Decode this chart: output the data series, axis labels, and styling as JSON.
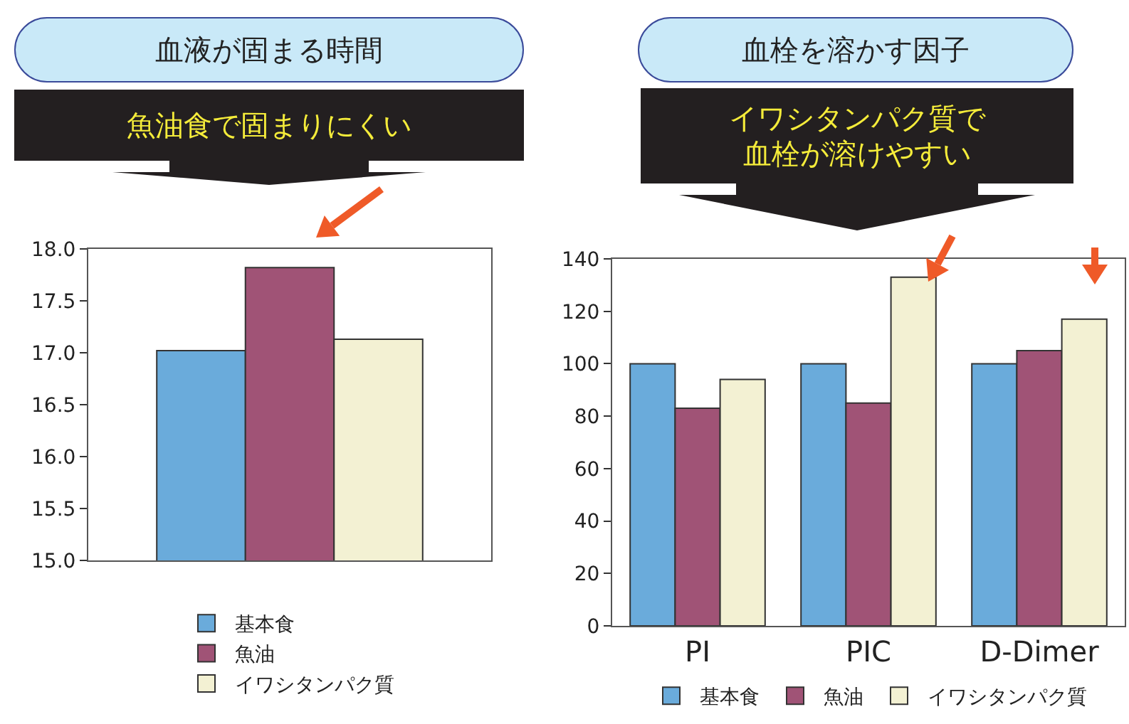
{
  "chart_data": [
    {
      "type": "bar",
      "title": "血液が固まる時間",
      "subtitle": "魚油食で固まりにくい",
      "categories": [
        null
      ],
      "series": [
        {
          "name": "基本食",
          "color": "#6aabdb",
          "values": [
            17.02
          ]
        },
        {
          "name": "魚油",
          "color": "#a05376",
          "values": [
            17.82
          ]
        },
        {
          "name": "イワシタンパク質",
          "color": "#f3f1d3",
          "values": [
            17.13
          ]
        }
      ],
      "ylim": [
        15,
        18
      ],
      "yticks": [
        {
          "value": 15,
          "label": "15.0"
        },
        {
          "value": 15.5,
          "label": "15.5"
        },
        {
          "value": 16,
          "label": "16.0"
        },
        {
          "value": 16.5,
          "label": "16.5"
        },
        {
          "value": 17,
          "label": "17.0"
        },
        {
          "value": 17.5,
          "label": "17.5"
        },
        {
          "value": 18,
          "label": "18.0"
        }
      ],
      "tick_labels": "y",
      "legend": "bottom"
    },
    {
      "type": "bar",
      "title": "血栓を溶かす因子",
      "subtitle": "イワシタンパク質で血栓が溶けやすい",
      "categories": [
        "PI",
        "PIC",
        "D-Dimer"
      ],
      "series": [
        {
          "name": "基本食",
          "color": "#6aabdb",
          "values": [
            100,
            100,
            100
          ]
        },
        {
          "name": "魚油",
          "color": "#a05376",
          "values": [
            83,
            85,
            105
          ]
        },
        {
          "name": "イワシタンパク質",
          "color": "#f3f1d3",
          "values": [
            94,
            133,
            117
          ]
        }
      ],
      "ylim": [
        0,
        140
      ],
      "yticks": [
        0,
        20,
        40,
        60,
        80,
        100,
        120,
        140
      ],
      "legend": "bottom"
    }
  ]
}
